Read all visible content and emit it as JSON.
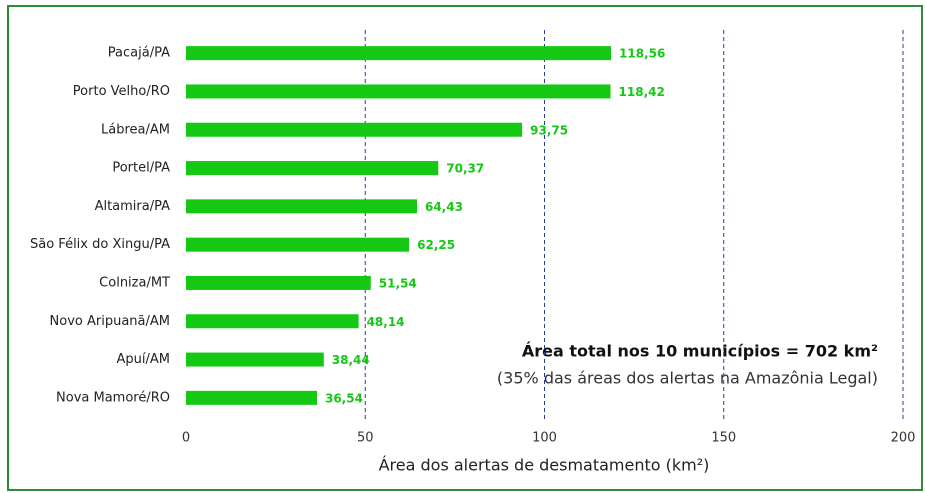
{
  "chart_data": {
    "type": "bar",
    "orientation": "horizontal",
    "categories": [
      "Pacajá/PA",
      "Porto Velho/RO",
      "Lábrea/AM",
      "Portel/PA",
      "Altamira/PA",
      "São Félix do Xingu/PA",
      "Colniza/MT",
      "Novo Aripuanã/AM",
      "Apuí/AM",
      "Nova Mamoré/RO"
    ],
    "values": [
      118.56,
      118.42,
      93.75,
      70.37,
      64.43,
      62.25,
      51.54,
      48.14,
      38.44,
      36.54
    ],
    "value_labels": [
      "118,56",
      "118,42",
      "93,75",
      "70,37",
      "64,43",
      "62,25",
      "51,54",
      "48,14",
      "38,44",
      "36,54"
    ],
    "color": "#14c814",
    "xlim": [
      0,
      200
    ],
    "xticks": [
      0,
      50,
      100,
      150,
      200
    ],
    "grid": true,
    "xlabel": "Área dos alertas de desmatamento (km²)",
    "annotations": [
      "Área total nos 10 municípios = 702 km²",
      "(35% das áreas dos alertas na Amazônia Legal)"
    ]
  }
}
